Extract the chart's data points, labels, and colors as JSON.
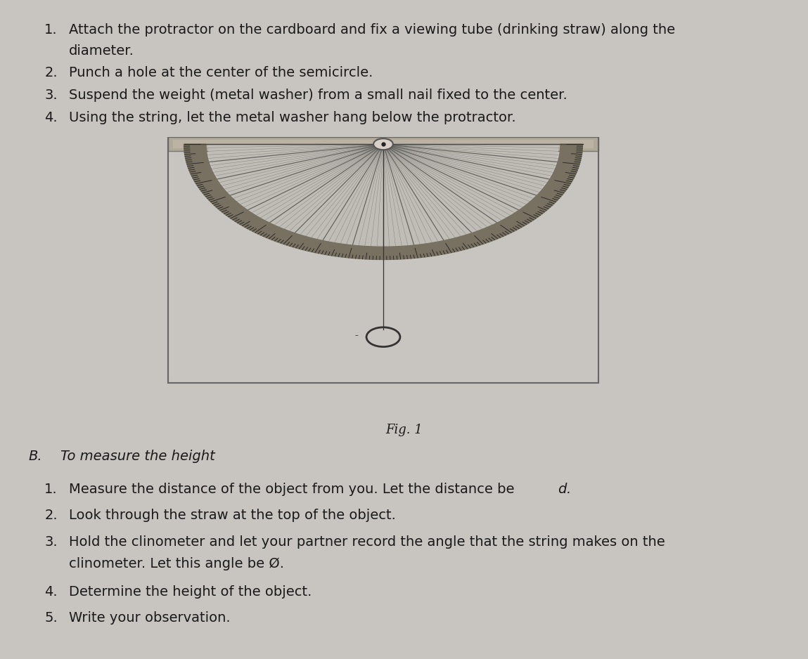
{
  "bg_color": "#c8c4c0",
  "text_color": "#1a1a1a",
  "fig_width": 11.49,
  "fig_height": 9.38,
  "dpi": 100,
  "section_a_items": [
    "Attach the protractor on the cardboard and fix a viewing tube (drinking straw) along the\ndiameter.",
    "Punch a hole at the center of the semicircle.",
    "Suspend the weight (metal washer) from a small nail fixed to the center.",
    "Using the string, let the metal washer hang below the protractor."
  ],
  "section_b_header": "B.   To measure the height",
  "section_b_items": [
    "Measure the distance of the object from you. Let the distance be $d$.",
    "Look through the straw at the top of the object.",
    "Hold the clinometer and let your partner record the angle that the string makes on the\nclinometer. Let this angle be Ø.",
    "Determine the height of the object.",
    "Write your observation."
  ],
  "fig_caption": "Fig. 1",
  "font_size": 14
}
